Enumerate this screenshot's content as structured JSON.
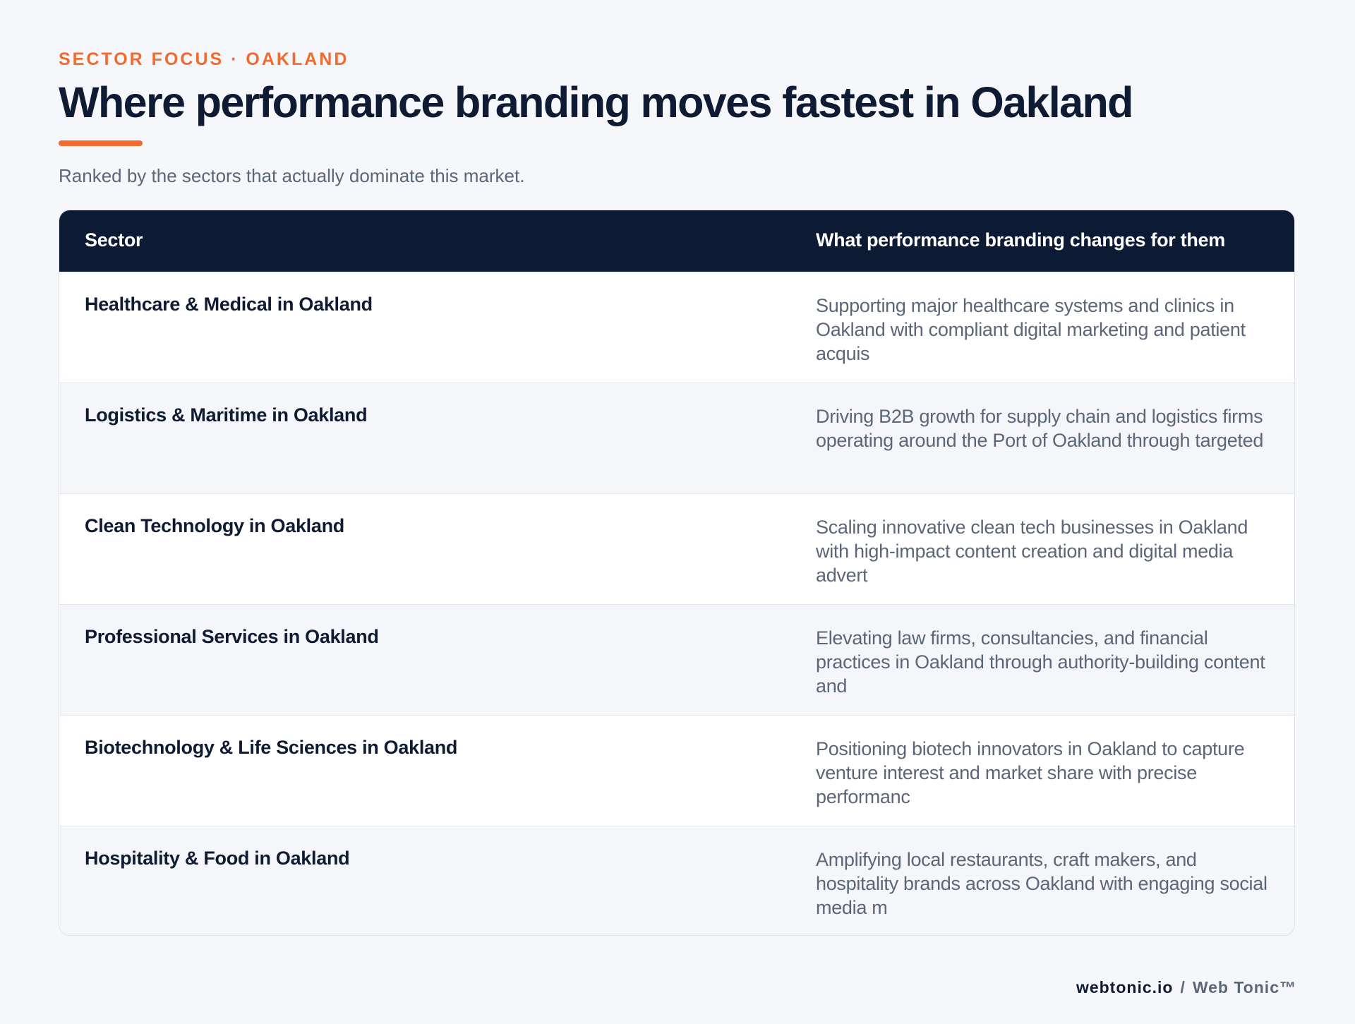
{
  "header": {
    "eyebrow": "SECTOR FOCUS · OAKLAND",
    "title": "Where performance branding moves fastest in Oakland",
    "subtitle": "Ranked by the sectors that actually dominate this market."
  },
  "table": {
    "columns": [
      "Sector",
      "What performance branding changes for them"
    ],
    "rows": [
      {
        "sector": "Healthcare & Medical in Oakland",
        "change": "Supporting major healthcare systems and clinics in Oakland with compliant digital marketing and patient acquis"
      },
      {
        "sector": "Logistics & Maritime in Oakland",
        "change": "Driving B2B growth for supply chain and logistics firms operating around the Port of Oakland through targeted"
      },
      {
        "sector": "Clean Technology in Oakland",
        "change": "Scaling innovative clean tech businesses in Oakland with high-impact content creation and digital media advert"
      },
      {
        "sector": "Professional Services in Oakland",
        "change": "Elevating law firms, consultancies, and financial practices in Oakland through authority-building content and"
      },
      {
        "sector": "Biotechnology & Life Sciences in Oakland",
        "change": "Positioning biotech innovators in Oakland to capture venture interest and market share with precise performanc"
      },
      {
        "sector": "Hospitality & Food in Oakland",
        "change": "Amplifying local restaurants, craft makers, and hospitality brands across Oakland with engaging social media m"
      }
    ]
  },
  "footer": {
    "domain": "webtonic.io",
    "separator": "/",
    "brand": "Web Tonic™"
  },
  "colors": {
    "accent": "#f26a2e",
    "navy": "#0d1a33",
    "muted_text": "#5b6678",
    "background": "#f5f7fa"
  }
}
